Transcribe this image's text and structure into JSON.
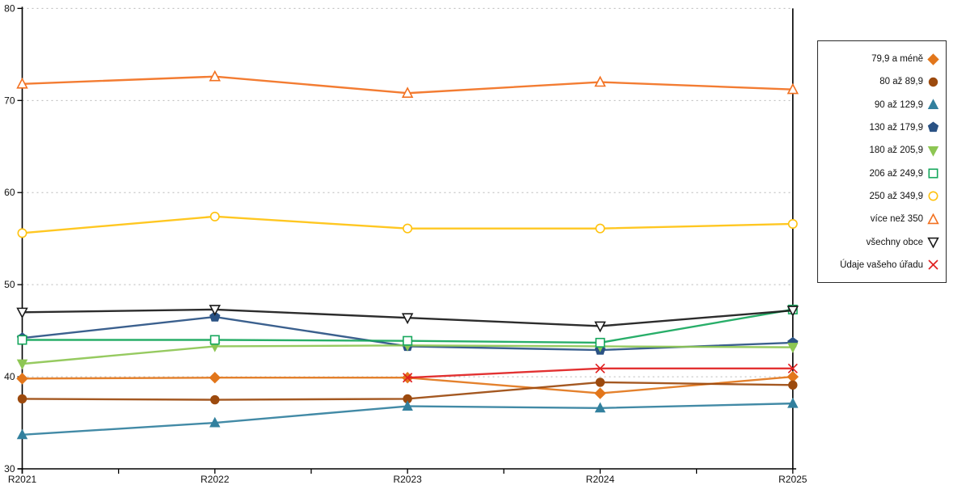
{
  "chart_data": {
    "type": "line",
    "title": "",
    "xlabel": "",
    "ylabel": "",
    "x_labels": [
      "R2021",
      "R2022",
      "R2023",
      "R2024",
      "R2025"
    ],
    "ylim": [
      30,
      80
    ],
    "yticks": [
      30,
      40,
      50,
      60,
      70,
      80
    ],
    "grid": "horizontal dashed gridlines at 40,50,60,70,80",
    "legend_position": "right-outside",
    "series": [
      {
        "name": "79,9 a méně",
        "color": "#E2761B",
        "marker": "diamond",
        "fill": "solid",
        "values": [
          39.8,
          39.9,
          39.9,
          38.2,
          40.0
        ]
      },
      {
        "name": "80 až 89,9",
        "color": "#9C4A0E",
        "marker": "circle",
        "fill": "solid",
        "values": [
          37.6,
          37.5,
          37.6,
          39.4,
          39.1
        ]
      },
      {
        "name": "90 až 129,9",
        "color": "#32809E",
        "marker": "triangle-up",
        "fill": "solid",
        "values": [
          33.7,
          35.0,
          36.8,
          36.6,
          37.1
        ]
      },
      {
        "name": "130 až 179,9",
        "color": "#2A5284",
        "marker": "pentagon",
        "fill": "solid",
        "values": [
          44.2,
          46.5,
          43.3,
          42.9,
          43.7
        ]
      },
      {
        "name": "180 až 205,9",
        "color": "#8DC653",
        "marker": "triangle-down",
        "fill": "solid",
        "values": [
          41.4,
          43.3,
          43.4,
          43.3,
          43.2
        ]
      },
      {
        "name": "206 až 249,9",
        "color": "#16A75C",
        "marker": "square",
        "fill": "open",
        "values": [
          44.0,
          44.0,
          43.9,
          43.7,
          47.3
        ]
      },
      {
        "name": "250 až 349,9",
        "color": "#FFC20E",
        "marker": "circle",
        "fill": "open",
        "values": [
          55.6,
          57.4,
          56.1,
          56.1,
          56.6
        ]
      },
      {
        "name": "více než 350",
        "color": "#F27121",
        "marker": "triangle-up",
        "fill": "open",
        "values": [
          71.8,
          72.6,
          70.8,
          72.0,
          71.2
        ]
      },
      {
        "name": "všechny obce",
        "color": "#1A1A1A",
        "marker": "triangle-down",
        "fill": "open",
        "values": [
          47.0,
          47.3,
          46.4,
          45.5,
          47.2
        ]
      },
      {
        "name": "Údaje vašeho úřadu",
        "color": "#E02020",
        "marker": "x",
        "fill": "open",
        "values": [
          null,
          null,
          39.9,
          40.9,
          40.9
        ]
      }
    ],
    "axis_color": "#000000",
    "gridline_color": "#b8b8b8",
    "tick_label_color": "#111111"
  }
}
